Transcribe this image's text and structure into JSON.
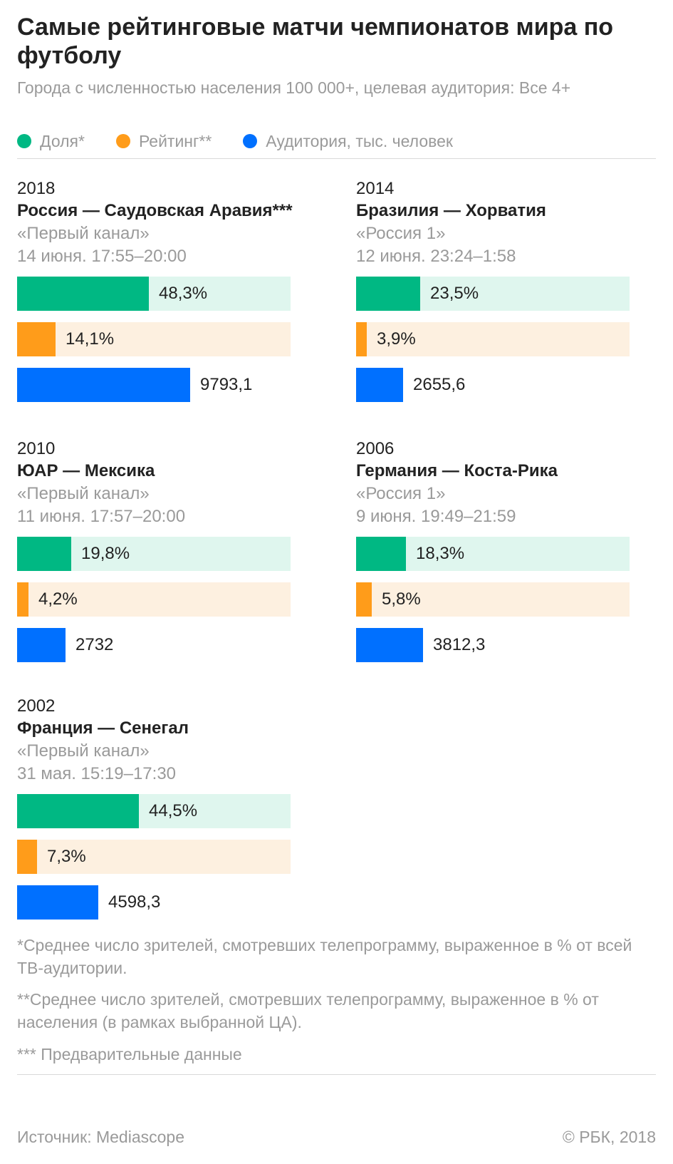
{
  "header": {
    "title": "Самые рейтинговые матчи чемпионатов мира по футболу",
    "subtitle": "Города с численностью населения 100 000+,  целевая аудитория: Все 4+"
  },
  "legend": [
    {
      "label": "Доля*",
      "color": "#00b883"
    },
    {
      "label": "Рейтинг**",
      "color": "#ff9c1a"
    },
    {
      "label": "Аудитория, тыс. человек",
      "color": "#0070ff"
    }
  ],
  "colors": {
    "share": "#00b883",
    "share_bg": "#dff6ee",
    "rating": "#ff9c1a",
    "rating_bg": "#fdf0e0",
    "audience": "#0070ff"
  },
  "chart_data": {
    "type": "bar",
    "title": "Самые рейтинговые матчи чемпионатов мира по футболу",
    "series_names": [
      "Доля*",
      "Рейтинг**",
      "Аудитория, тыс. человек"
    ],
    "share_scale_max": 100,
    "rating_scale_max": 100,
    "audience_scale_max": 15500,
    "panels": [
      {
        "year": "2018",
        "match": "Россия — Саудовская Аравия***",
        "channel": "«Первый канал»",
        "time": "14 июня. 17:55–20:00",
        "share": 48.3,
        "share_label": "48,3%",
        "rating": 14.1,
        "rating_label": "14,1%",
        "audience": 9793.1,
        "audience_label": "9793,1"
      },
      {
        "year": "2014",
        "match": "Бразилия — Хорватия",
        "channel": "«Россия 1»",
        "time": "12 июня. 23:24–1:58",
        "share": 23.5,
        "share_label": "23,5%",
        "rating": 3.9,
        "rating_label": "3,9%",
        "audience": 2655.6,
        "audience_label": "2655,6"
      },
      {
        "year": "2010",
        "match": "ЮАР — Мексика",
        "channel": "«Первый канал»",
        "time": "11 июня. 17:57–20:00",
        "share": 19.8,
        "share_label": "19,8%",
        "rating": 4.2,
        "rating_label": "4,2%",
        "audience": 2732,
        "audience_label": "2732"
      },
      {
        "year": "2006",
        "match": "Германия — Коста-Рика",
        "channel": "«Россия 1»",
        "time": "9 июня. 19:49–21:59",
        "share": 18.3,
        "share_label": "18,3%",
        "rating": 5.8,
        "rating_label": "5,8%",
        "audience": 3812.3,
        "audience_label": "3812,3"
      },
      {
        "year": "2002",
        "match": "Франция — Сенегал",
        "channel": "«Первый канал»",
        "time": "31 мая. 15:19–17:30",
        "share": 44.5,
        "share_label": "44,5%",
        "rating": 7.3,
        "rating_label": "7,3%",
        "audience": 4598.3,
        "audience_label": "4598,3"
      }
    ]
  },
  "footnotes": {
    "note1": "*Среднее число зрителей, смотревших телепрограмму, выраженное в % от всей ТВ-аудитории.",
    "note2": "**Среднее число зрителей, смотревших телепрограмму, выраженное в % от населения (в рамках выбранной ЦА).",
    "note3": "*** Предварительные данные"
  },
  "footer": {
    "source": "Источник: Mediascope",
    "copyright": "© РБК, 2018"
  }
}
